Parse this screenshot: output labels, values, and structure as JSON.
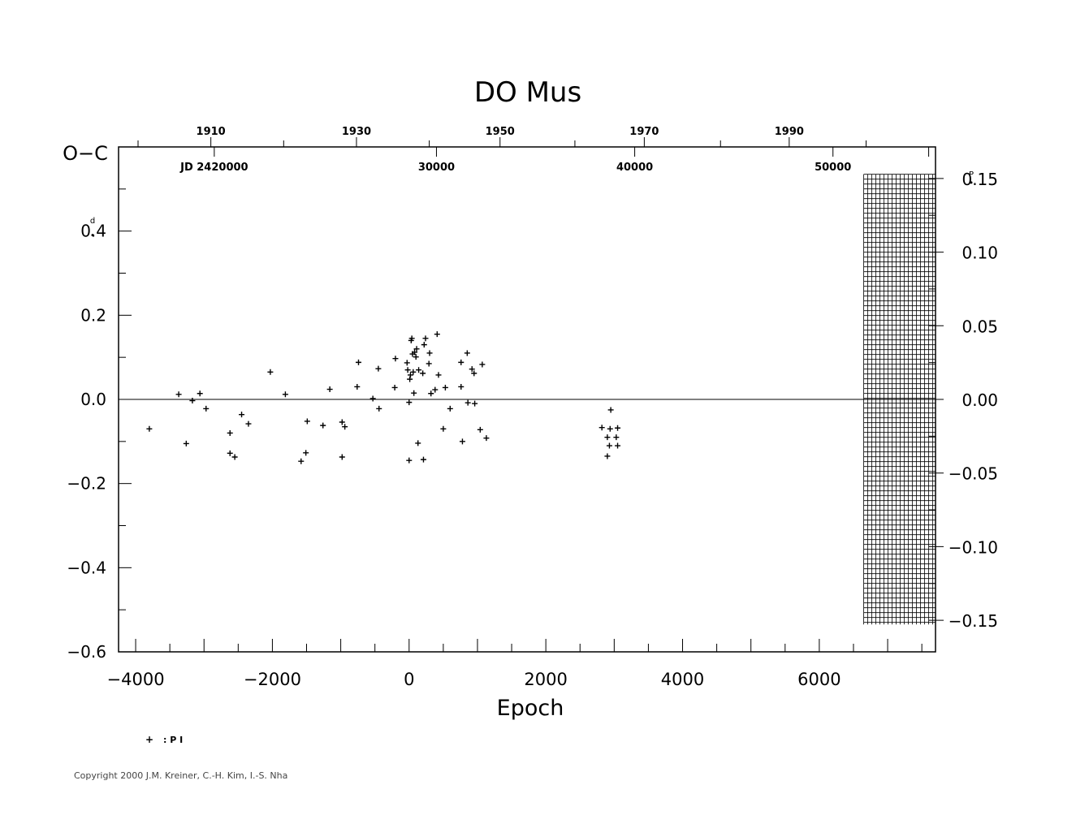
{
  "chart_data": {
    "type": "scatter",
    "title": "DO Mus",
    "xlabel": "Epoch",
    "ylabel": "O−C",
    "ylabel_unit": "d",
    "right_axis_unit": "P",
    "xlim": [
      -4250,
      7700
    ],
    "ylim": [
      -0.6,
      0.6
    ],
    "x_ticks": [
      -4000,
      -2000,
      0,
      2000,
      4000,
      6000
    ],
    "x_tick_labels": [
      "−4000",
      "−2000",
      "0",
      "2000",
      "4000",
      "6000"
    ],
    "y_ticks": [
      -0.6,
      -0.4,
      -0.2,
      0.0,
      0.2,
      0.4
    ],
    "y_tick_labels": [
      "−0.6",
      "−0.4",
      "−0.2",
      "0.0",
      "0.2",
      "0.4"
    ],
    "right_ticks": [
      0.15,
      0.1,
      0.05,
      0.0,
      -0.05,
      -0.1,
      -0.15
    ],
    "right_tick_labels": [
      "0.15",
      "0.10",
      "0.05",
      "0.00",
      "−0.05",
      "−0.10",
      "−0.15"
    ],
    "top_years": [
      {
        "label": "1910",
        "epoch": -2900
      },
      {
        "label": "1930",
        "epoch": -770
      },
      {
        "label": "1950",
        "epoch": 1330
      },
      {
        "label": "1970",
        "epoch": 3440
      },
      {
        "label": "1990",
        "epoch": 5560
      }
    ],
    "jd_labels": [
      {
        "label": "JD 2420000",
        "epoch": -2850
      },
      {
        "label": "30000",
        "epoch": 400
      },
      {
        "label": "40000",
        "epoch": 3300
      },
      {
        "label": "50000",
        "epoch": 6200
      }
    ],
    "hatched_x_range": [
      6650,
      7700
    ],
    "hatched_y_range": [
      -0.535,
      0.535
    ],
    "legend": {
      "symbol": "+",
      "label": ": P I"
    },
    "series": [
      {
        "name": "P I",
        "points": [
          [
            -3800,
            -0.07
          ],
          [
            -3370,
            0.012
          ],
          [
            -3260,
            -0.105
          ],
          [
            -3170,
            -0.003
          ],
          [
            -3060,
            0.014
          ],
          [
            -2970,
            -0.022
          ],
          [
            -2620,
            -0.08
          ],
          [
            -2620,
            -0.128
          ],
          [
            -2550,
            -0.137
          ],
          [
            -2450,
            -0.036
          ],
          [
            -2350,
            -0.058
          ],
          [
            -2030,
            0.065
          ],
          [
            -1810,
            0.012
          ],
          [
            -1580,
            -0.147
          ],
          [
            -1510,
            -0.127
          ],
          [
            -1490,
            -0.052
          ],
          [
            -1260,
            -0.062
          ],
          [
            -1160,
            0.024
          ],
          [
            -980,
            -0.054
          ],
          [
            -980,
            -0.137
          ],
          [
            -940,
            -0.065
          ],
          [
            -760,
            0.03
          ],
          [
            -740,
            0.088
          ],
          [
            -530,
            0.002
          ],
          [
            -450,
            0.073
          ],
          [
            -440,
            -0.022
          ],
          [
            -210,
            0.028
          ],
          [
            -200,
            0.097
          ],
          [
            -30,
            0.087
          ],
          [
            -20,
            0.07
          ],
          [
            0,
            -0.145
          ],
          [
            0,
            -0.007
          ],
          [
            10,
            0.048
          ],
          [
            20,
            0.058
          ],
          [
            30,
            0.14
          ],
          [
            40,
            0.145
          ],
          [
            50,
            0.108
          ],
          [
            60,
            0.065
          ],
          [
            70,
            0.015
          ],
          [
            80,
            0.112
          ],
          [
            100,
            0.101
          ],
          [
            110,
            0.12
          ],
          [
            130,
            -0.104
          ],
          [
            140,
            0.07
          ],
          [
            200,
            0.062
          ],
          [
            210,
            -0.143
          ],
          [
            220,
            0.13
          ],
          [
            240,
            0.145
          ],
          [
            290,
            0.085
          ],
          [
            300,
            0.11
          ],
          [
            320,
            0.014
          ],
          [
            380,
            0.023
          ],
          [
            410,
            0.155
          ],
          [
            430,
            0.058
          ],
          [
            500,
            -0.07
          ],
          [
            530,
            0.028
          ],
          [
            600,
            -0.022
          ],
          [
            760,
            0.03
          ],
          [
            760,
            0.088
          ],
          [
            780,
            -0.1
          ],
          [
            850,
            0.11
          ],
          [
            860,
            -0.008
          ],
          [
            920,
            0.072
          ],
          [
            950,
            0.062
          ],
          [
            960,
            -0.01
          ],
          [
            1040,
            -0.072
          ],
          [
            1070,
            0.083
          ],
          [
            1130,
            -0.092
          ],
          [
            2820,
            -0.067
          ],
          [
            2900,
            -0.09
          ],
          [
            2900,
            -0.135
          ],
          [
            2930,
            -0.11
          ],
          [
            2940,
            -0.07
          ],
          [
            2950,
            -0.025
          ],
          [
            3030,
            -0.09
          ],
          [
            3050,
            -0.068
          ],
          [
            3050,
            -0.11
          ]
        ]
      }
    ]
  },
  "copyright": "Copyright 2000 J.M. Kreiner, C.-H. Kim, I.-S. Nha"
}
